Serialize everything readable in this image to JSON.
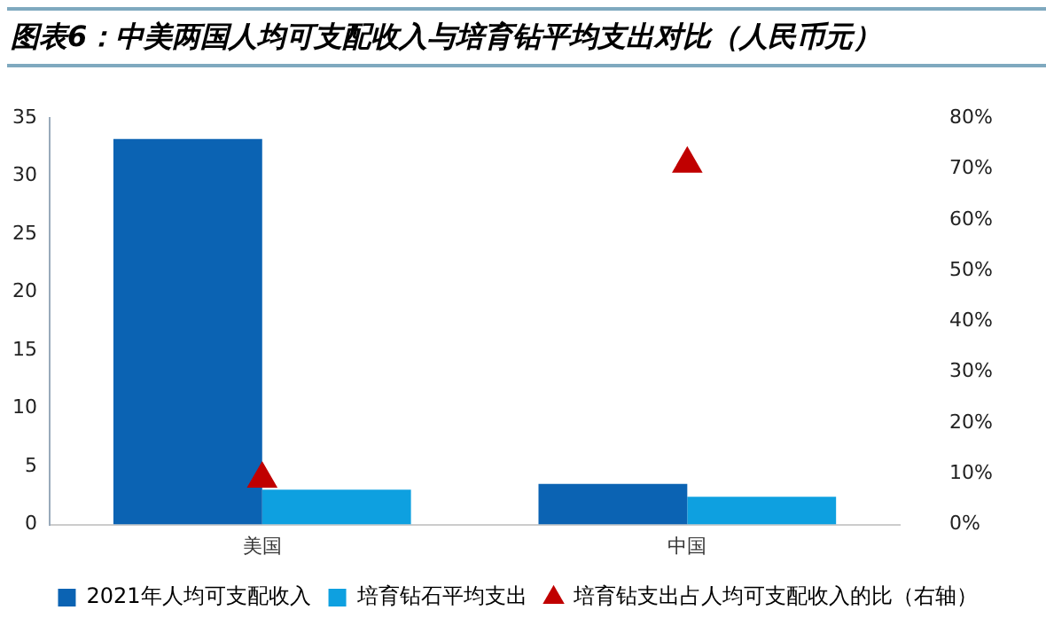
{
  "chart_data": {
    "type": "bar",
    "title": "图表6：中美两国人均可支配收入与培育钻平均支出对比（人民币元）",
    "categories": [
      "美国",
      "中国"
    ],
    "series": [
      {
        "name": "2021年人均可支配收入",
        "color": "#0b63b3",
        "values": [
          33.2,
          3.5
        ]
      },
      {
        "name": "培育钻石平均支出",
        "color": "#0ea0e0",
        "values": [
          3.0,
          2.4
        ]
      },
      {
        "name": "培育钻支出占人均可支配收入的比（右轴）",
        "type": "scatter",
        "color": "#c00000",
        "axis": "y2",
        "marker": "triangle",
        "x": [
          "美国",
          "中国"
        ],
        "values": [
          9,
          71
        ]
      }
    ],
    "ylim": [
      0,
      35
    ],
    "yticks": [
      0,
      5,
      10,
      15,
      20,
      25,
      30,
      35
    ],
    "y2lim": [
      0,
      80
    ],
    "y2ticks": [
      {
        "value": 0,
        "label": "0%"
      },
      {
        "value": 10,
        "label": "10%"
      },
      {
        "value": 20,
        "label": "20%"
      },
      {
        "value": 30,
        "label": "30%"
      },
      {
        "value": 40,
        "label": "40%"
      },
      {
        "value": 50,
        "label": "50%"
      },
      {
        "value": 60,
        "label": "60%"
      },
      {
        "value": 70,
        "label": "70%"
      },
      {
        "value": 80,
        "label": "80%"
      }
    ],
    "grid": false,
    "legend": "bottom"
  }
}
